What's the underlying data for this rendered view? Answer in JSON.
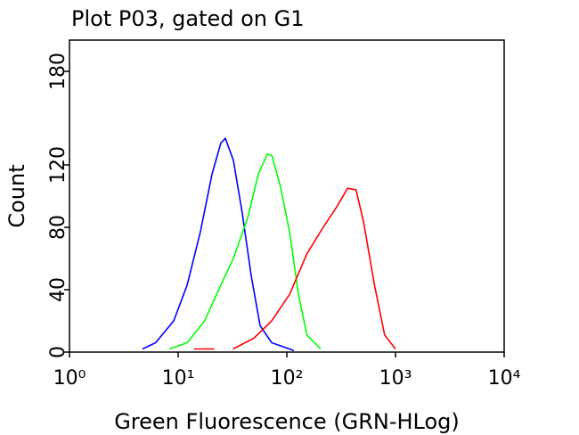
{
  "chart_data": {
    "type": "line",
    "title": "Plot P03, gated on G1",
    "x_label": "Green Fluorescence (GRN-HLog)",
    "y_label": "Count",
    "log_x": true,
    "xlim": [
      1,
      10000
    ],
    "xticks": [
      {
        "value": 1,
        "label": "10⁰"
      },
      {
        "value": 10,
        "label": "10¹"
      },
      {
        "value": 100,
        "label": "10²"
      },
      {
        "value": 1000,
        "label": "10³"
      },
      {
        "value": 10000,
        "label": "10⁴"
      }
    ],
    "ylim": [
      0,
      200
    ],
    "yticks": [
      0,
      40,
      80,
      120,
      180
    ],
    "series": [
      {
        "color": "#0000ff",
        "x": [
          4.7,
          6.2,
          9.1,
          12.1,
          16,
          20.5,
          24.7,
          27.2,
          32.2,
          38.9,
          47,
          56.8,
          72.6,
          116
        ],
        "values": [
          2,
          6,
          20,
          43,
          77,
          114,
          134,
          137,
          123,
          89,
          49,
          17,
          6,
          1
        ]
      },
      {
        "color": "#00ff00",
        "x": [
          8.3,
          12.1,
          17.5,
          24.7,
          32.2,
          43.6,
          54.7,
          66.1,
          73,
          87.4,
          106,
          128,
          153,
          205
        ],
        "values": [
          2,
          6,
          20,
          43,
          60,
          86,
          114,
          127,
          126,
          106,
          77,
          37,
          11,
          2
        ]
      },
      {
        "color": "#ff0000",
        "x": [
          14,
          21.5,
          26,
          32,
          49.8,
          72.6,
          106,
          153,
          216,
          287,
          362,
          433,
          510,
          640,
          794,
          1000
        ],
        "values": [
          2,
          2,
          null,
          2,
          9,
          20,
          37,
          63,
          80,
          93,
          105,
          104,
          83,
          43,
          11,
          2
        ]
      }
    ]
  }
}
